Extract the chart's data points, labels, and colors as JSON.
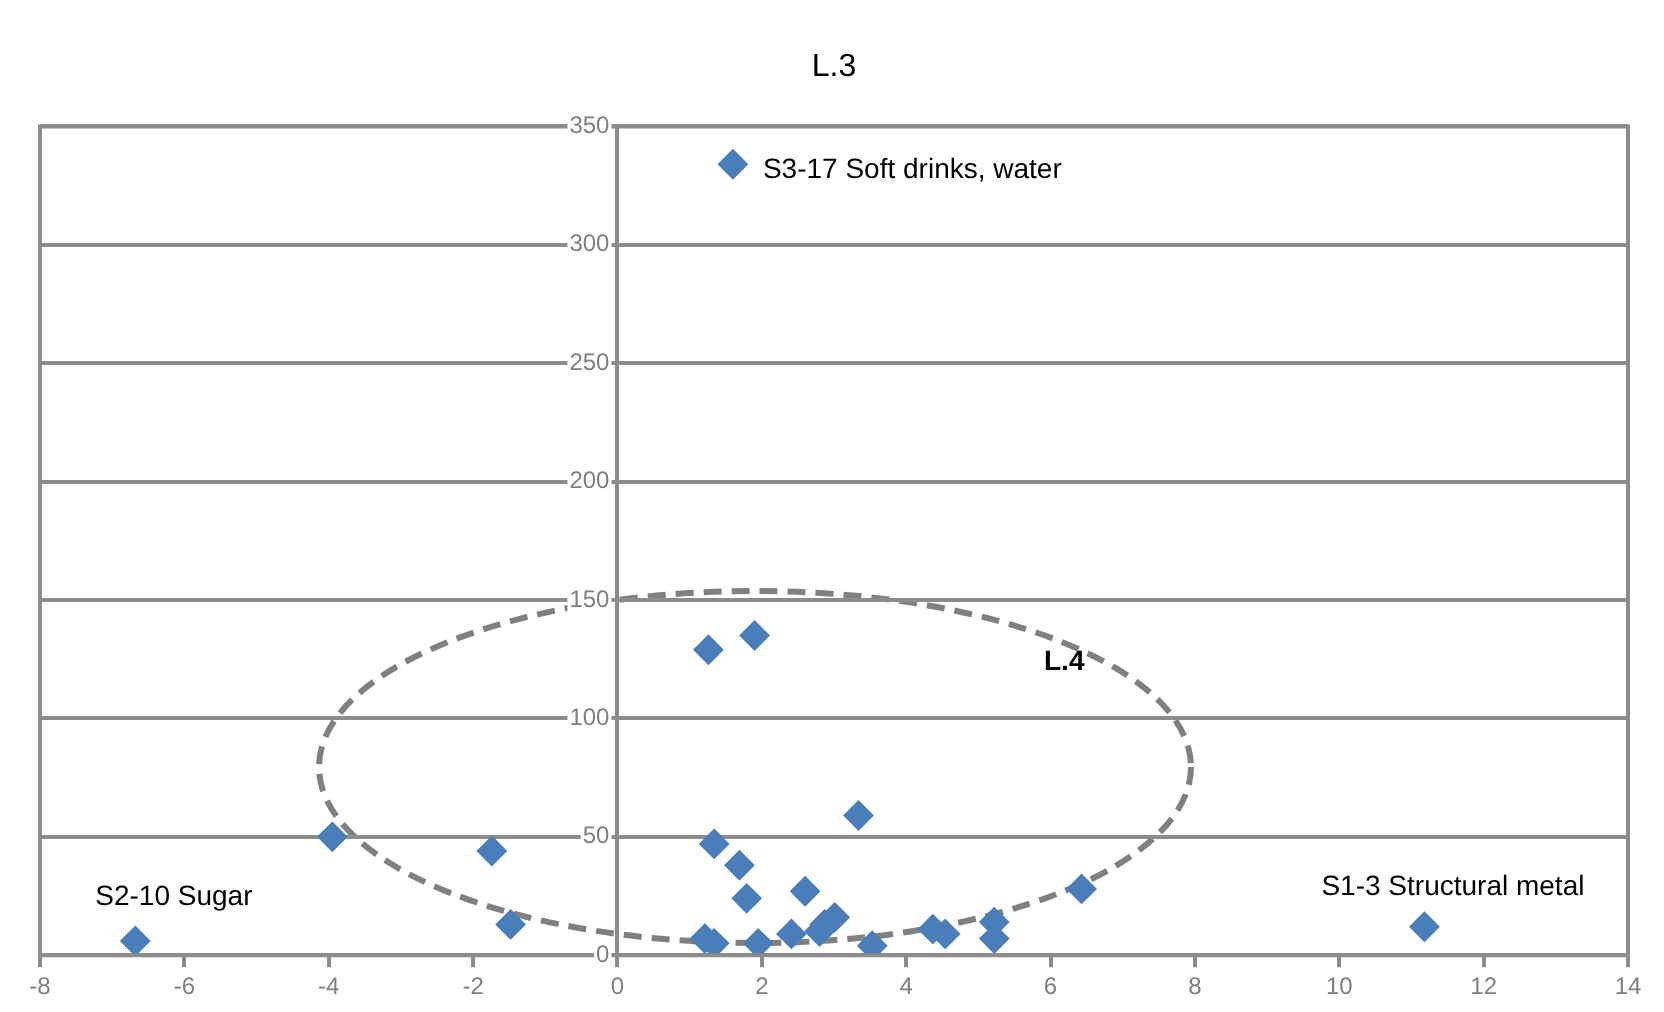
{
  "chart_data": {
    "type": "scatter",
    "title": "L.3",
    "x": [
      -6.68,
      -3.95,
      -1.74,
      -1.48,
      1.6,
      1.26,
      1.9,
      1.34,
      1.69,
      1.79,
      2.6,
      3.34,
      1.21,
      1.34,
      1.95,
      2.41,
      2.8,
      3.01,
      2.87,
      3.53,
      4.37,
      4.54,
      5.22,
      5.22,
      6.43,
      11.18
    ],
    "values": [
      6,
      50,
      44,
      13,
      334,
      129,
      135,
      47,
      38,
      24,
      27,
      59,
      7,
      5,
      5,
      9,
      10,
      16,
      13,
      4,
      11,
      9,
      14,
      7,
      28,
      12
    ],
    "color": "#4a7ebb",
    "marker": "diamond",
    "xlim": [
      -8,
      14
    ],
    "xticks": [
      -8,
      -6,
      -4,
      -2,
      0,
      2,
      4,
      6,
      8,
      10,
      12,
      14
    ],
    "ylim": [
      0,
      350
    ],
    "yticks": [
      0,
      50,
      100,
      150,
      200,
      250,
      300,
      350
    ],
    "grid": "y",
    "legend": false,
    "annotations": [
      {
        "text": "S3-17 Soft drinks, water",
        "x": 1.6,
        "y": 334
      },
      {
        "text": "S2-10 Sugar",
        "x": -6.68,
        "y": 6
      },
      {
        "text": "S1-3 Structural metal",
        "x": 11.18,
        "y": 12
      },
      "L.4"
    ]
  }
}
